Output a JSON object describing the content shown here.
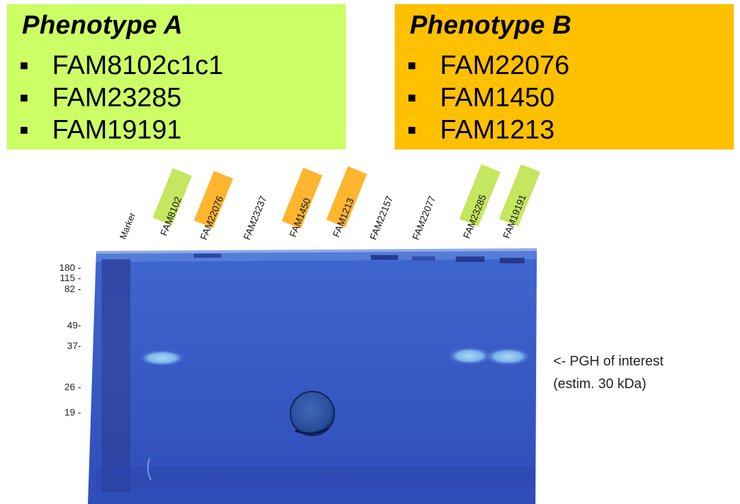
{
  "phenotype_a": {
    "title": "Phenotype A",
    "items": [
      "FAM8102c1c1",
      "FAM23285",
      "FAM19191"
    ],
    "color": "#ccff66"
  },
  "phenotype_b": {
    "title": "Phenotype B",
    "items": [
      "FAM22076",
      "FAM1450",
      "FAM1213"
    ],
    "color": "#ffc000"
  },
  "gel": {
    "lanes": [
      {
        "label": "Marker",
        "highlight": "none"
      },
      {
        "label": "FAM8102",
        "highlight": "a"
      },
      {
        "label": "FAM22076",
        "highlight": "b"
      },
      {
        "label": "FAM23237",
        "highlight": "none"
      },
      {
        "label": "FAM1450",
        "highlight": "b"
      },
      {
        "label": "FAM1213",
        "highlight": "b"
      },
      {
        "label": "FAM22157",
        "highlight": "none"
      },
      {
        "label": "FAM22077",
        "highlight": "none"
      },
      {
        "label": "FAM23285",
        "highlight": "a"
      },
      {
        "label": "FAM19191",
        "highlight": "a"
      }
    ],
    "markers": [
      "180 -",
      "115 -",
      "82 -",
      "49-",
      "37-",
      "26 -",
      "19 -"
    ],
    "annotation_line1": "<- PGH of interest",
    "annotation_line2": "(estim. 30 kDa)",
    "gel_color": "#3a5fc8"
  }
}
